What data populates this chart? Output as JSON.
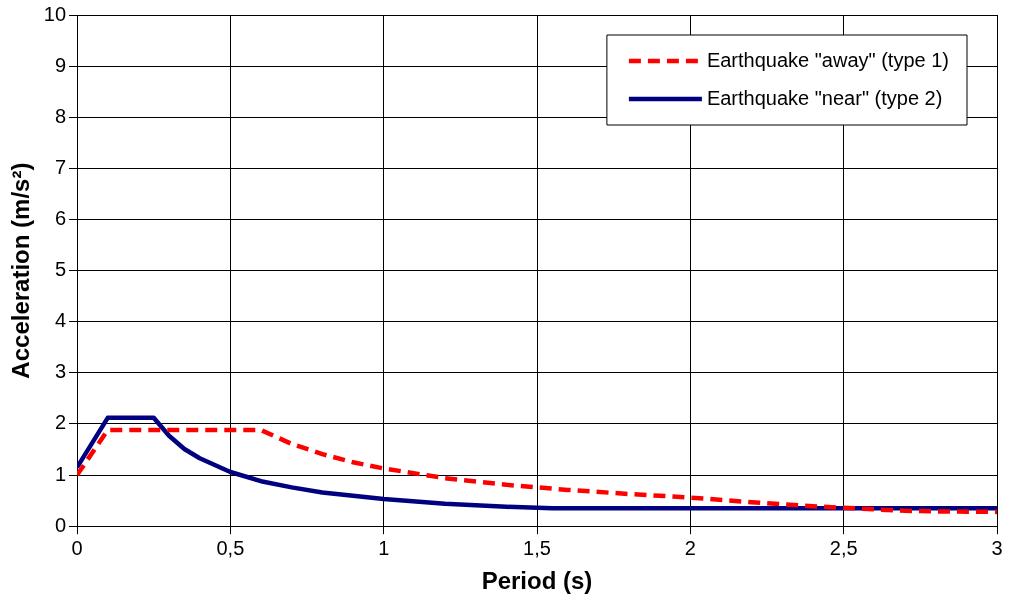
{
  "chart_data": {
    "type": "line",
    "xlabel": "Period (s)",
    "ylabel": "Acceleration (m/s²)",
    "xlim": [
      0,
      3
    ],
    "xticks": [
      0,
      {
        "value": 0.5,
        "label": "0,5"
      },
      1,
      {
        "value": 1.5,
        "label": "1,5"
      },
      2,
      {
        "value": 2.5,
        "label": "2,5"
      },
      3
    ],
    "ylim": [
      0,
      10
    ],
    "yticks": [
      0,
      1,
      2,
      3,
      4,
      5,
      6,
      7,
      8,
      9,
      10
    ],
    "grid": true,
    "legend": "top right",
    "marker": "none",
    "series": [
      {
        "name": "Earthquake \"away\" (type 1)",
        "color": "#ff0000",
        "line_style": "dashed",
        "x": [
          0,
          0.1,
          0.6,
          0.7,
          0.8,
          0.9,
          1,
          1.2,
          1.4,
          1.6,
          1.8,
          2,
          2.2,
          2.4,
          2.6,
          2.7,
          2.8,
          3
        ],
        "values": [
          1.0,
          1.88,
          1.88,
          1.61,
          1.41,
          1.25,
          1.13,
          0.94,
          0.81,
          0.71,
          0.63,
          0.56,
          0.47,
          0.39,
          0.33,
          0.3,
          0.29,
          0.28
        ]
      },
      {
        "name": "Earthquake \"near\" (type 2)",
        "color": "#000080",
        "line_style": "solid",
        "x": [
          0,
          0.1,
          0.25,
          0.3,
          0.35,
          0.4,
          0.5,
          0.6,
          0.7,
          0.8,
          1,
          1.2,
          1.4,
          1.55,
          3
        ],
        "values": [
          1.15,
          2.12,
          2.12,
          1.77,
          1.51,
          1.33,
          1.06,
          0.88,
          0.76,
          0.66,
          0.53,
          0.44,
          0.38,
          0.35,
          0.35
        ]
      }
    ]
  }
}
